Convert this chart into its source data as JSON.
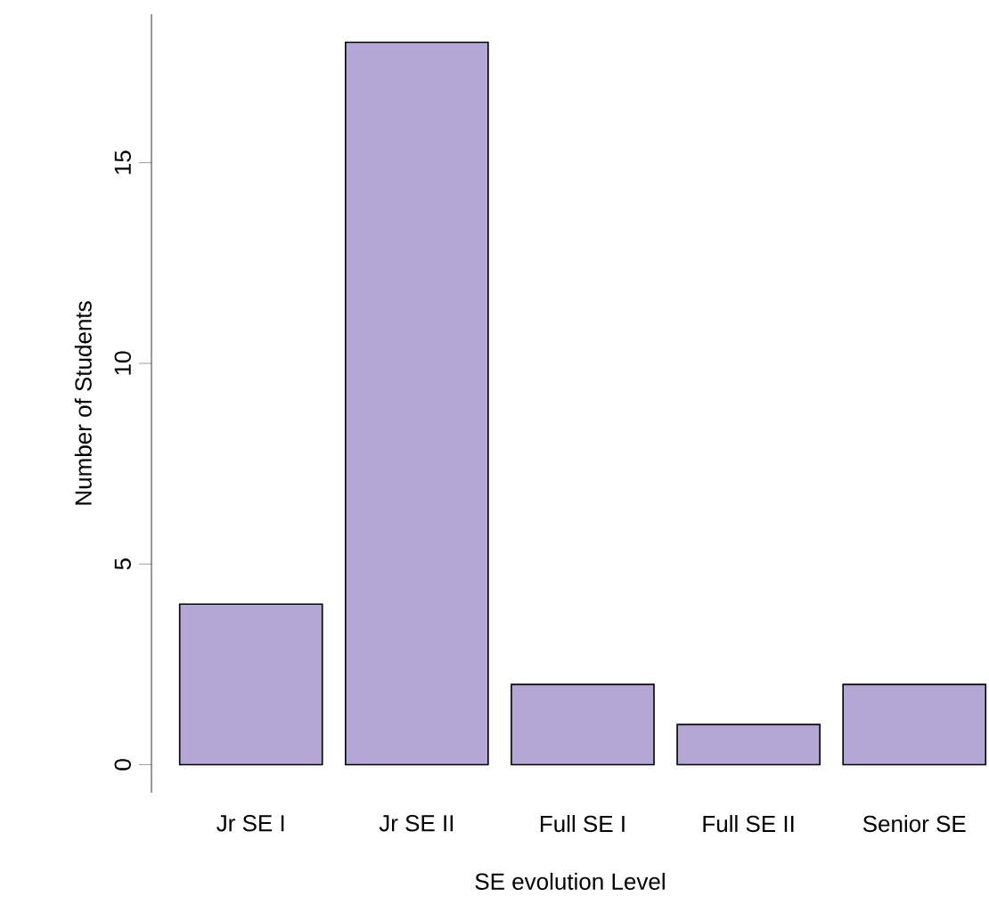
{
  "chart_data": {
    "type": "bar",
    "xlabel": "SE evolution Level",
    "ylabel": "Number of Students",
    "categories": [
      "Jr SE I",
      "Jr SE II",
      "Full SE I",
      "Full SE II",
      "Senior SE"
    ],
    "values": [
      4,
      18,
      2,
      1,
      2
    ],
    "color": "#b4a7d6",
    "ylim": [
      -0.7,
      18.7
    ],
    "yticks": [
      0,
      5,
      10,
      15
    ],
    "grid": false
  }
}
